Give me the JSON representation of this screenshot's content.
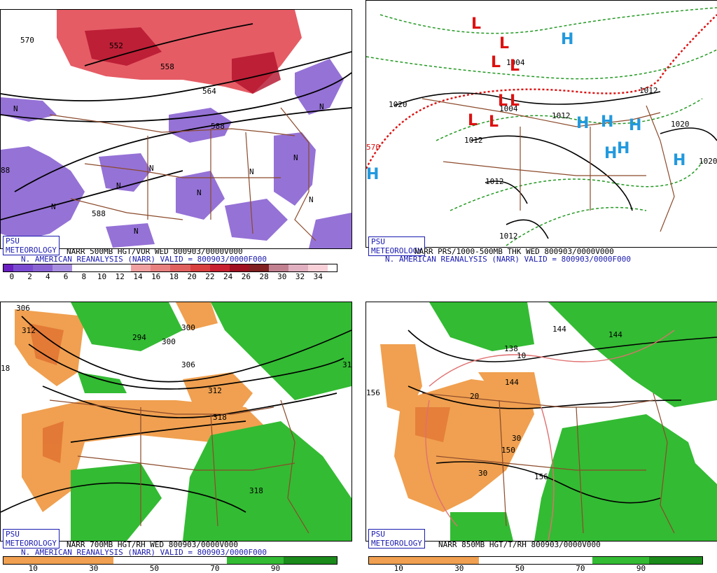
{
  "panels": [
    {
      "id": "vor500",
      "brand": "PSU METEOROLOGY",
      "title_line1": "NARR 500MB HGT/VOR WED 800903/0000V000",
      "title_line2": "N. AMERICAN REANALYSIS (NARR) VALID = 800903/0000F000",
      "colorbar_labels": [
        "0",
        "2",
        "4",
        "6",
        "8",
        "10",
        "12",
        "14",
        "16",
        "18",
        "20",
        "22",
        "24",
        "26",
        "28",
        "30",
        "32",
        "34"
      ],
      "map_labels": [
        "570",
        "552",
        "558",
        "564",
        "588",
        "588",
        "588",
        "N",
        "N",
        "N",
        "N",
        "N",
        "N",
        "N",
        "N",
        "N",
        "N"
      ]
    },
    {
      "id": "prs_thk",
      "brand": "PSU METEOROLOGY",
      "title_line1": "NARR PRS/1000-500MB THK WED 800903/0000V000",
      "title_line2": "N. AMERICAN REANALYSIS (NARR) VALID = 800903/0000F000",
      "map_labels": [
        "1020",
        "1004",
        "1004",
        "1012",
        "1012",
        "1012",
        "1012",
        "1020",
        "1020",
        "570",
        "1012"
      ],
      "pressure_centers": [
        "L",
        "L",
        "L",
        "L",
        "L",
        "L",
        "L",
        "L",
        "H",
        "H",
        "H",
        "H",
        "H",
        "H",
        "H",
        "H"
      ]
    },
    {
      "id": "rh700",
      "brand": "PSU METEOROLOGY",
      "title_line1": "NARR 700MB HGT/RH WED 800903/0000V000",
      "title_line2": "N. AMERICAN REANALYSIS (NARR) VALID = 800903/0000F000",
      "colorbar_labels": [
        "10",
        "30",
        "50",
        "70",
        "90"
      ],
      "map_labels": [
        "306",
        "312",
        "294",
        "300",
        "300",
        "306",
        "312",
        "318",
        "318",
        "18",
        "31"
      ]
    },
    {
      "id": "rh850",
      "brand": "PSU METEOROLOGY",
      "title_line1": "NARR 850MB HGT/T/RH 800903/0000V000",
      "colorbar_labels": [
        "10",
        "30",
        "50",
        "70",
        "90"
      ],
      "map_labels": [
        "156",
        "144",
        "144",
        "138",
        "144",
        "150",
        "156",
        "10",
        "20",
        "30",
        "30"
      ]
    }
  ],
  "colors": {
    "vorticity_purple": "#8a63d2",
    "vorticity_red": "#e0404a",
    "rh_green": "#33bb33",
    "rh_orange": "#f0a050",
    "borders_brown": "#8b4a2b",
    "brand_blue": "#1a1ab0",
    "low_red": "#dd1111",
    "high_blue": "#2299dd"
  }
}
